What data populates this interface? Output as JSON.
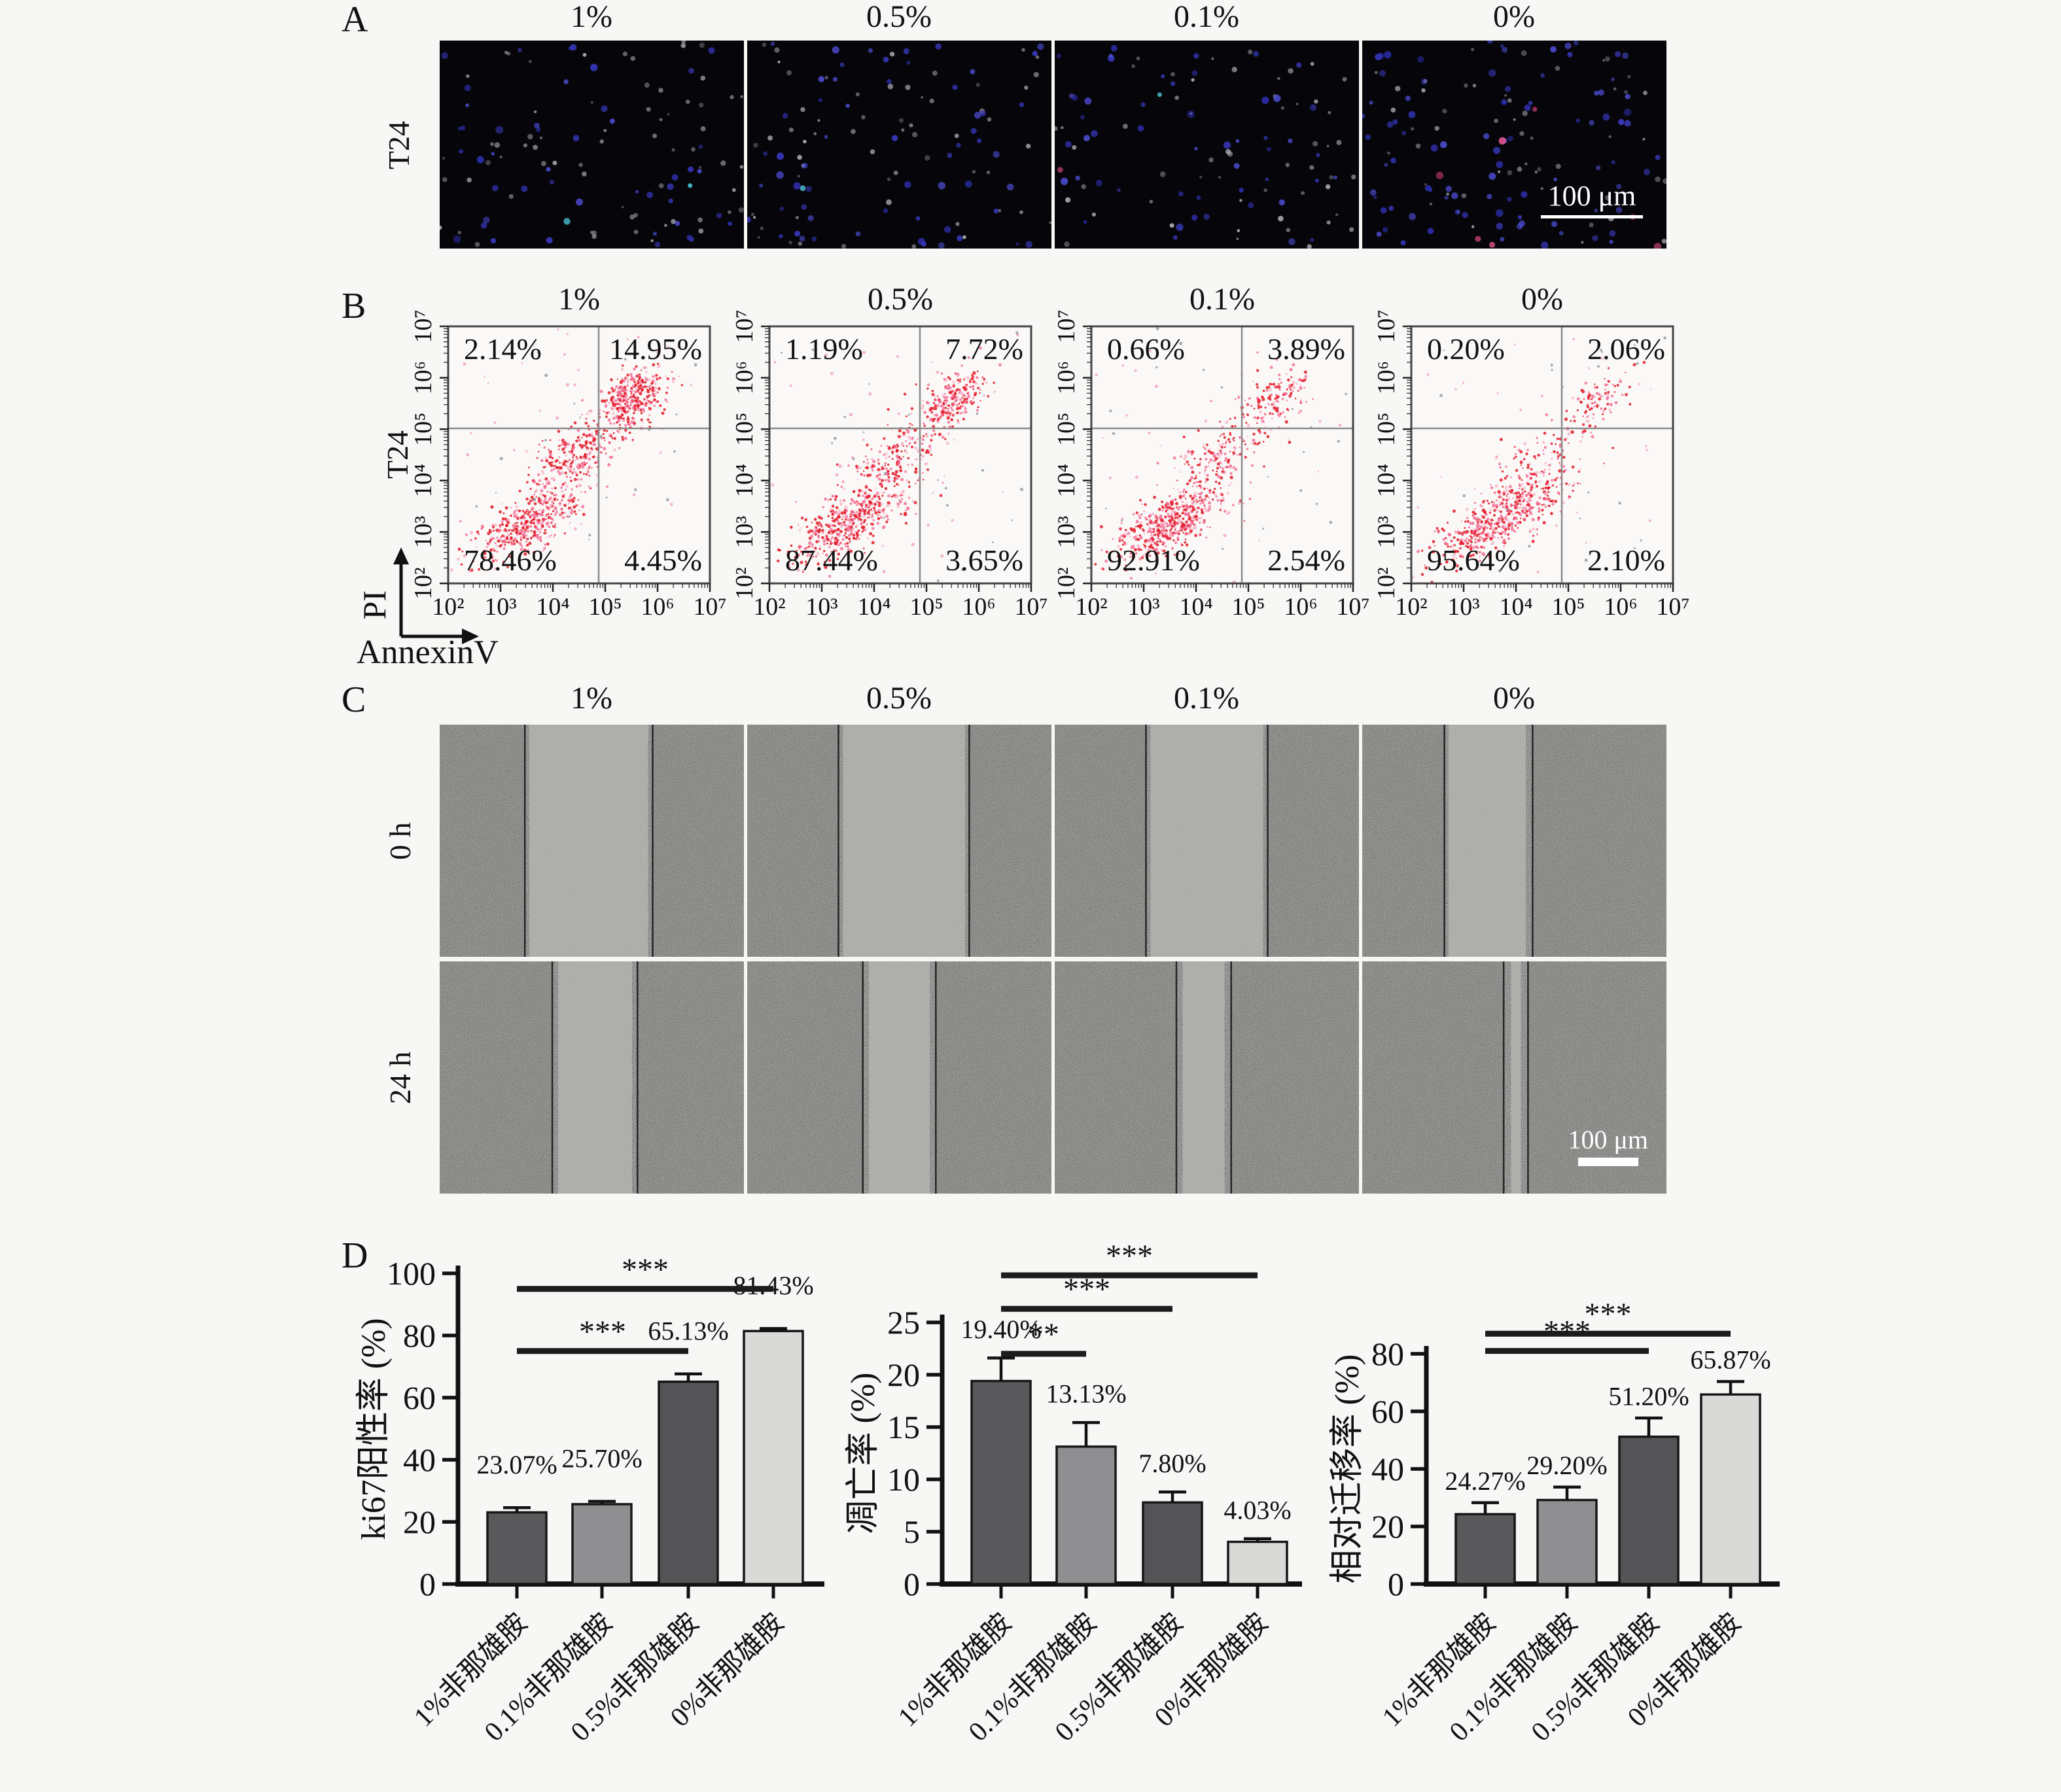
{
  "figure": {
    "background": "#f7f7f6",
    "panels": {
      "A": {
        "label": "A",
        "row_label": "T24",
        "column_headers": [
          "1%",
          "0.5%",
          "0.1%",
          "0%"
        ],
        "scale_bar": "100 μm"
      },
      "B": {
        "label": "B",
        "row_label": "T24"
      },
      "C": {
        "label": "C",
        "column_headers": [
          "1%",
          "0.5%",
          "0.1%",
          "0%"
        ],
        "row_labels": [
          "0 h",
          "24 h"
        ],
        "scale_bar": "100 μm"
      },
      "D": {
        "label": "D"
      }
    }
  },
  "chart_data": [
    {
      "type": "scatter",
      "panel": "B",
      "cell_line": "T24",
      "xlabel": "AnnexinV",
      "ylabel": "PI",
      "x_scale": "log",
      "y_scale": "log",
      "xlim": [
        "10²",
        "10⁷"
      ],
      "ylim": [
        "10²",
        "10⁷"
      ],
      "tick_labels": [
        "10²",
        "10³",
        "10⁴",
        "10⁵",
        "10⁶",
        "10⁷"
      ],
      "plots": [
        {
          "group": "1%",
          "quadrants": {
            "upper_left": "2.14%",
            "upper_right": "14.95%",
            "lower_left": "78.46%",
            "lower_right": "4.45%"
          }
        },
        {
          "group": "0.5%",
          "quadrants": {
            "upper_left": "1.19%",
            "upper_right": "7.72%",
            "lower_left": "87.44%",
            "lower_right": "3.65%"
          }
        },
        {
          "group": "0.1%",
          "quadrants": {
            "upper_left": "0.66%",
            "upper_right": "3.89%",
            "lower_left": "92.91%",
            "lower_right": "2.54%"
          }
        },
        {
          "group": "0%",
          "quadrants": {
            "upper_left": "0.20%",
            "upper_right": "2.06%",
            "lower_left": "95.64%",
            "lower_right": "2.10%"
          }
        }
      ]
    },
    {
      "type": "bar",
      "panel": "D",
      "ylabel": "ki67阳性率 (%)",
      "categories": [
        "1%非那雄胺",
        "0.1%非那雄胺",
        "0.5%非那雄胺",
        "0%非那雄胺"
      ],
      "values": [
        23.07,
        25.7,
        65.13,
        81.43
      ],
      "value_labels": [
        "23.07%",
        "25.70%",
        "65.13%",
        "81.43%"
      ],
      "errors": [
        1.5,
        0.9,
        2.5,
        0.8
      ],
      "ylim": [
        0,
        100
      ],
      "yticks": [
        0,
        20,
        40,
        60,
        80,
        100
      ],
      "bar_colors": [
        "#59595b",
        "#8f8f91",
        "#545456",
        "#d9d9d7"
      ],
      "significance": [
        {
          "from": 0,
          "to": 3,
          "label": "***",
          "y": 95
        },
        {
          "from": 0,
          "to": 2,
          "label": "***",
          "y": 75
        }
      ]
    },
    {
      "type": "bar",
      "panel": "D",
      "ylabel": "凋亡率 (%)",
      "categories": [
        "1%非那雄胺",
        "0.1%非那雄胺",
        "0.5%非那雄胺",
        "0%非那雄胺"
      ],
      "values": [
        19.4,
        13.13,
        7.8,
        4.03
      ],
      "value_labels": [
        "19.40%",
        "13.13%",
        "7.80%",
        "4.03%"
      ],
      "errors": [
        2.2,
        2.3,
        1.0,
        0.3
      ],
      "ylim": [
        0,
        25
      ],
      "yticks": [
        0,
        5,
        10,
        15,
        20,
        25
      ],
      "bar_colors": [
        "#59595b",
        "#8f8f91",
        "#545456",
        "#d9d9d7"
      ],
      "significance": [
        {
          "from": 0,
          "to": 3,
          "label": "***",
          "y": 29.5
        },
        {
          "from": 0,
          "to": 2,
          "label": "***",
          "y": 26.3
        },
        {
          "from": 0,
          "to": 1,
          "label": "**",
          "y": 22
        }
      ]
    },
    {
      "type": "bar",
      "panel": "D",
      "ylabel": "相对迁移率 (%)",
      "categories": [
        "1%非那雄胺",
        "0.1%非那雄胺",
        "0.5%非那雄胺",
        "0%非那雄胺"
      ],
      "values": [
        24.27,
        29.2,
        51.2,
        65.87
      ],
      "value_labels": [
        "24.27%",
        "29.20%",
        "51.20%",
        "65.87%"
      ],
      "errors": [
        4.0,
        4.5,
        6.5,
        4.5
      ],
      "ylim": [
        0,
        80
      ],
      "yticks": [
        0,
        20,
        40,
        60,
        80
      ],
      "bar_colors": [
        "#59595b",
        "#8f8f91",
        "#545456",
        "#d9d9d7"
      ],
      "significance": [
        {
          "from": 0,
          "to": 3,
          "label": "***",
          "y": 87
        },
        {
          "from": 0,
          "to": 2,
          "label": "***",
          "y": 81
        }
      ]
    }
  ]
}
